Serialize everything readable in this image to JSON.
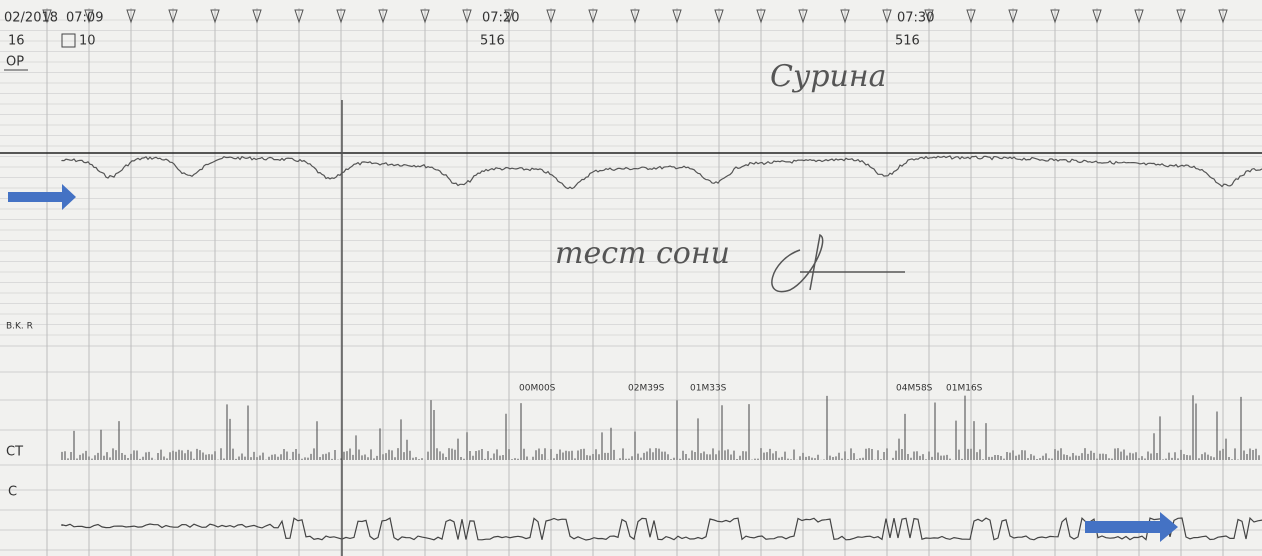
{
  "header": {
    "date": "02/2018",
    "start_time": "07:09",
    "row_label": "16",
    "counter": "10",
    "channel_label": "OP"
  },
  "time_marks": [
    {
      "time": "07:20",
      "code": "516"
    },
    {
      "time": "07:30",
      "code": "516"
    }
  ],
  "handwriting": {
    "top": "Сурина",
    "middle": "тест сони"
  },
  "channel_labels": {
    "bkr": "B.K. R",
    "ct": "CT",
    "c": "C"
  },
  "timers": [
    "00M00S",
    "02M39S",
    "01M33S",
    "04M58S",
    "01M16S"
  ]
}
